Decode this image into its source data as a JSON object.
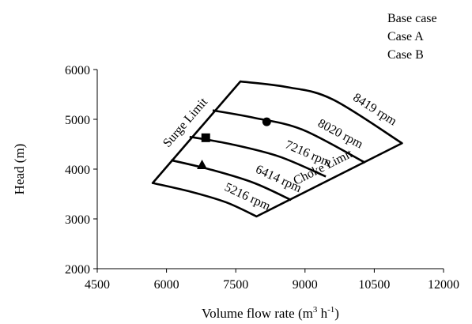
{
  "chart_data": {
    "type": "line",
    "title": "",
    "xlabel": "Volume flow rate (m",
    "xlabel_sup1": "3",
    "xlabel_mid": " h",
    "xlabel_sup2": "-1",
    "xlabel_end": ")",
    "ylabel": "Head (m)",
    "xlim": [
      4500,
      12000
    ],
    "ylim": [
      2000,
      6000
    ],
    "xticks": [
      "4500",
      "6000",
      "7500",
      "9000",
      "10500",
      "12000"
    ],
    "yticks": [
      "2000",
      "3000",
      "4000",
      "5000",
      "6000"
    ],
    "grid": false,
    "legend_position": "top-right",
    "legend": [
      {
        "label": "Base case",
        "marker": "circle"
      },
      {
        "label": "Case A",
        "marker": "square"
      },
      {
        "label": "Case B",
        "marker": "triangle"
      }
    ],
    "speed_lines": [
      {
        "name": "5216 rpm",
        "points": [
          [
            5700,
            3720
          ],
          [
            6550,
            3540
          ],
          [
            7300,
            3330
          ],
          [
            7950,
            3050
          ]
        ]
      },
      {
        "name": "6414 rpm",
        "points": [
          [
            6100,
            4180
          ],
          [
            7000,
            3980
          ],
          [
            7900,
            3720
          ],
          [
            8700,
            3380
          ]
        ]
      },
      {
        "name": "7216 rpm",
        "points": [
          [
            6500,
            4650
          ],
          [
            7400,
            4500
          ],
          [
            8450,
            4250
          ],
          [
            9450,
            3850
          ]
        ]
      },
      {
        "name": "8020 rpm",
        "points": [
          [
            7000,
            5180
          ],
          [
            7900,
            5030
          ],
          [
            8950,
            4790
          ],
          [
            10300,
            4130
          ]
        ]
      },
      {
        "name": "8419 rpm",
        "points": [
          [
            7600,
            5760
          ],
          [
            8600,
            5650
          ],
          [
            9600,
            5400
          ],
          [
            11100,
            4520
          ]
        ]
      }
    ],
    "surge_limit": {
      "name": "Surge Limit",
      "points": [
        [
          5700,
          3720
        ],
        [
          7600,
          5760
        ]
      ]
    },
    "choke_limit": {
      "name": "Choke Limit",
      "points": [
        [
          7950,
          3050
        ],
        [
          11100,
          4520
        ]
      ]
    },
    "operating_points": [
      {
        "series": "Base case",
        "marker": "circle",
        "x": 8170,
        "y": 4950
      },
      {
        "series": "Case A",
        "marker": "square",
        "x": 6850,
        "y": 4630
      },
      {
        "series": "Case B",
        "marker": "triangle",
        "x": 6770,
        "y": 4080
      }
    ]
  }
}
